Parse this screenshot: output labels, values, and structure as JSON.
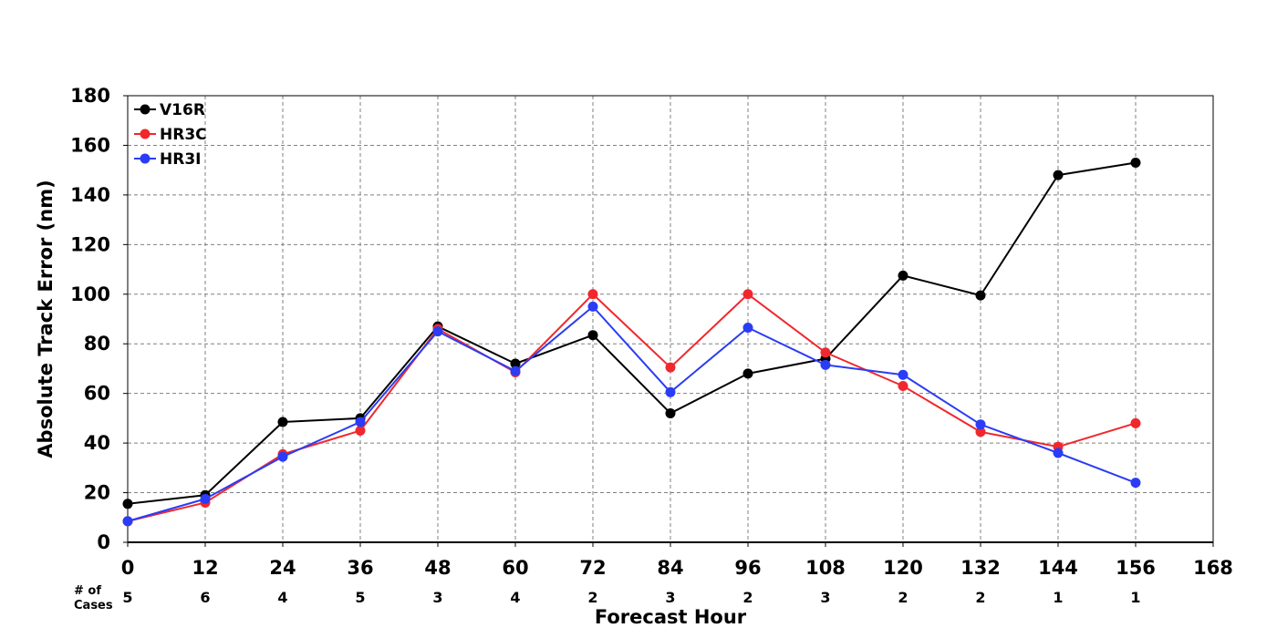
{
  "chart_data": {
    "type": "line",
    "title": "",
    "xlabel": "Forecast Hour",
    "ylabel": "Absolute Track Error (nm)",
    "x": [
      0,
      12,
      24,
      36,
      48,
      60,
      72,
      84,
      96,
      108,
      120,
      132,
      144,
      156
    ],
    "xlim": [
      0,
      168
    ],
    "ylim": [
      0,
      180
    ],
    "x_ticks": [
      0,
      12,
      24,
      36,
      48,
      60,
      72,
      84,
      96,
      108,
      120,
      132,
      144,
      156,
      168
    ],
    "y_ticks": [
      0,
      20,
      40,
      60,
      80,
      100,
      120,
      140,
      160,
      180
    ],
    "grid": true,
    "legend_position": "top-left",
    "series": [
      {
        "name": "V16R",
        "color": "#000000",
        "values": [
          15.5,
          19,
          48.5,
          50,
          87,
          72,
          83.5,
          52,
          68,
          74,
          107.5,
          99.5,
          148,
          153
        ]
      },
      {
        "name": "HR3C",
        "color": "#f0282d",
        "values": [
          8.5,
          16,
          35.5,
          45,
          86,
          68.5,
          100,
          70.5,
          100,
          76.5,
          63,
          44.5,
          38.5,
          48
        ]
      },
      {
        "name": "HR3I",
        "color": "#2a3cf5",
        "values": [
          8.5,
          17.5,
          34.5,
          48.5,
          85,
          69,
          95,
          60.5,
          86.5,
          71.5,
          67.5,
          47.5,
          36,
          24
        ]
      }
    ],
    "cases_label": [
      "# of",
      "Cases"
    ],
    "cases": [
      "5",
      "6",
      "4",
      "5",
      "3",
      "4",
      "2",
      "3",
      "2",
      "3",
      "2",
      "2",
      "1",
      "1"
    ]
  }
}
